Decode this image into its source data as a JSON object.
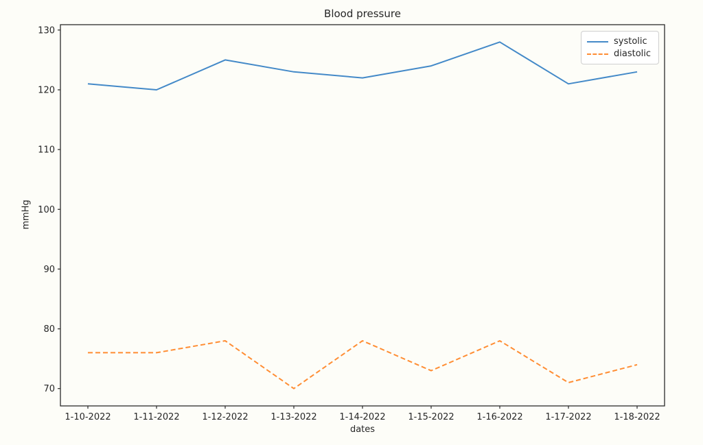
{
  "theme": {
    "background": "#fdfdf8",
    "text_color": "#262626",
    "spine_color": "#2b2b2b",
    "legend_border": "#cfcfcf"
  },
  "chart_data": {
    "type": "line",
    "title": "Blood pressure",
    "xlabel": "dates",
    "ylabel": "mmHg",
    "categories": [
      "1-10-2022",
      "1-11-2022",
      "1-12-2022",
      "1-13-2022",
      "1-14-2022",
      "1-15-2022",
      "1-16-2022",
      "1-17-2022",
      "1-18-2022"
    ],
    "series": [
      {
        "name": "systolic",
        "style": "solid",
        "color": "#4389c8",
        "values": [
          121,
          120,
          125,
          123,
          122,
          124,
          128,
          121,
          123
        ]
      },
      {
        "name": "diastolic",
        "style": "dashed",
        "color": "#ff8d33",
        "values": [
          76,
          76,
          78,
          70,
          78,
          73,
          78,
          71,
          74
        ]
      }
    ],
    "yticks": [
      70,
      80,
      90,
      100,
      110,
      120,
      130
    ],
    "ylim": [
      67.1,
      130.9
    ],
    "xlim": [
      -0.4,
      8.4
    ],
    "grid": false,
    "legend_position": "upper right"
  }
}
